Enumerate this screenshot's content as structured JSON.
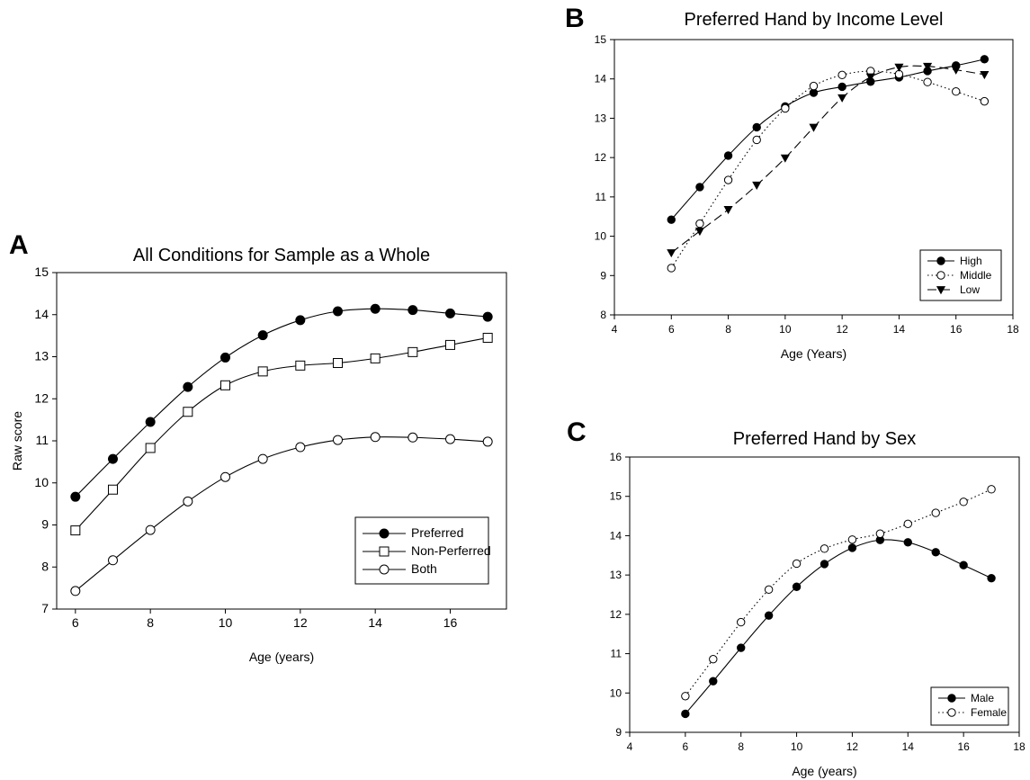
{
  "chart_data": [
    {
      "id": "A",
      "panel_label": "A",
      "type": "line",
      "title": "All Conditions for Sample as a Whole",
      "xlabel": "Age (years)",
      "ylabel": "Raw score",
      "xlim": [
        5.5,
        17.5
      ],
      "ylim": [
        7,
        15
      ],
      "xticks": [
        6,
        8,
        10,
        12,
        14,
        16
      ],
      "yticks": [
        7,
        8,
        9,
        10,
        11,
        12,
        13,
        14,
        15
      ],
      "grid": false,
      "legend_position": "bottom-right",
      "series": [
        {
          "name": "Preferred",
          "marker": "filled-circle",
          "line": "solid",
          "x": [
            6,
            7,
            8,
            9,
            10,
            11,
            12,
            13,
            14,
            15,
            16,
            17
          ],
          "y": [
            9.67,
            10.57,
            11.45,
            12.28,
            12.98,
            13.51,
            13.87,
            14.08,
            14.14,
            14.11,
            14.03,
            13.95
          ]
        },
        {
          "name": "Non-Perferred",
          "marker": "open-square",
          "line": "solid",
          "x": [
            6,
            7,
            8,
            9,
            10,
            11,
            12,
            13,
            14,
            15,
            16,
            17
          ],
          "y": [
            8.87,
            9.84,
            10.83,
            11.69,
            12.32,
            12.65,
            12.79,
            12.85,
            12.96,
            13.11,
            13.28,
            13.45
          ]
        },
        {
          "name": "Both",
          "marker": "open-circle",
          "line": "solid",
          "x": [
            6,
            7,
            8,
            9,
            10,
            11,
            12,
            13,
            14,
            15,
            16,
            17
          ],
          "y": [
            7.43,
            8.16,
            8.88,
            9.56,
            10.14,
            10.57,
            10.85,
            11.02,
            11.09,
            11.08,
            11.04,
            10.98
          ]
        }
      ]
    },
    {
      "id": "B",
      "panel_label": "B",
      "type": "line",
      "title": "Preferred Hand by Income Level",
      "xlabel": "Age (Years)",
      "ylabel": "",
      "xlim": [
        4,
        18
      ],
      "ylim": [
        8,
        15
      ],
      "xticks": [
        4,
        6,
        8,
        10,
        12,
        14,
        16,
        18
      ],
      "yticks": [
        8,
        9,
        10,
        11,
        12,
        13,
        14,
        15
      ],
      "grid": false,
      "legend_position": "bottom-right",
      "series": [
        {
          "name": "High",
          "marker": "filled-circle",
          "line": "solid",
          "x": [
            6,
            7,
            8,
            9,
            10,
            11,
            12,
            13,
            14,
            15,
            16,
            17
          ],
          "y": [
            10.42,
            11.25,
            12.05,
            12.77,
            13.3,
            13.65,
            13.8,
            13.93,
            14.04,
            14.2,
            14.34,
            14.5
          ]
        },
        {
          "name": "Middle",
          "marker": "open-circle",
          "line": "dotted",
          "x": [
            6,
            7,
            8,
            9,
            10,
            11,
            12,
            13,
            14,
            15,
            16,
            17
          ],
          "y": [
            9.19,
            10.32,
            11.43,
            12.45,
            13.25,
            13.82,
            14.1,
            14.2,
            14.12,
            13.92,
            13.68,
            13.43
          ]
        },
        {
          "name": "Low",
          "marker": "filled-triangle-down",
          "line": "dashed",
          "x": [
            6,
            7,
            8,
            9,
            10,
            11,
            12,
            13,
            14,
            15,
            16,
            17
          ],
          "y": [
            9.58,
            10.13,
            10.68,
            11.3,
            11.99,
            12.77,
            13.52,
            14.05,
            14.3,
            14.32,
            14.23,
            14.11
          ]
        }
      ]
    },
    {
      "id": "C",
      "panel_label": "C",
      "type": "line",
      "title": "Preferred Hand by Sex",
      "xlabel": "Age (years)",
      "ylabel": "",
      "xlim": [
        4,
        18
      ],
      "ylim": [
        9,
        16
      ],
      "xticks": [
        4,
        6,
        8,
        10,
        12,
        14,
        16,
        18
      ],
      "yticks": [
        9,
        10,
        11,
        12,
        13,
        14,
        15,
        16
      ],
      "grid": false,
      "legend_position": "bottom-right",
      "series": [
        {
          "name": "Male",
          "marker": "filled-circle",
          "line": "solid",
          "x": [
            6,
            7,
            8,
            9,
            10,
            11,
            12,
            13,
            14,
            15,
            16,
            17
          ],
          "y": [
            9.47,
            10.3,
            11.15,
            11.97,
            12.7,
            13.28,
            13.69,
            13.89,
            13.83,
            13.58,
            13.25,
            12.92
          ]
        },
        {
          "name": "Female",
          "marker": "open-circle",
          "line": "dotted",
          "x": [
            6,
            7,
            8,
            9,
            10,
            11,
            12,
            13,
            14,
            15,
            16,
            17
          ],
          "y": [
            9.92,
            10.86,
            11.8,
            12.63,
            13.29,
            13.67,
            13.9,
            14.05,
            14.3,
            14.58,
            14.86,
            15.18
          ]
        }
      ]
    }
  ]
}
